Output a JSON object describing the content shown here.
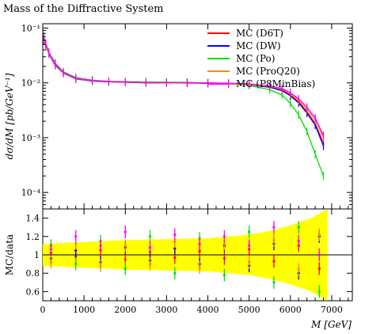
{
  "chart_data": [
    {
      "type": "line",
      "title": "Mass of the Diffractive System",
      "ylabel": "dσ/dM [pb/GeV⁻¹]",
      "xlabel": "",
      "xlim": [
        0,
        7500
      ],
      "ylim": [
        5e-05,
        0.12
      ],
      "yscale": "log",
      "ytick_labels": [
        "10⁻¹",
        "10⁻²",
        "10⁻³",
        "10⁻⁴"
      ],
      "ytick_values": [
        0.1,
        0.01,
        0.001,
        0.0001
      ],
      "legend": {
        "placement": "top-right"
      },
      "series": [
        {
          "name": "MC (D6T)",
          "color": "#ff0000",
          "x": [
            25,
            75,
            150,
            300,
            500,
            800,
            1200,
            1600,
            2000,
            2500,
            3000,
            3500,
            4000,
            4500,
            5000,
            5500,
            5800,
            6000,
            6200,
            6400,
            6600,
            6800
          ],
          "y": [
            0.065,
            0.05,
            0.035,
            0.022,
            0.015,
            0.012,
            0.011,
            0.0105,
            0.0103,
            0.0102,
            0.0101,
            0.0101,
            0.0099,
            0.0098,
            0.0095,
            0.0085,
            0.0075,
            0.006,
            0.0045,
            0.003,
            0.0018,
            0.0008
          ]
        },
        {
          "name": "MC (DW)",
          "color": "#0000ff",
          "x": [
            25,
            75,
            150,
            300,
            500,
            800,
            1200,
            1600,
            2000,
            2500,
            3000,
            3500,
            4000,
            4500,
            5000,
            5500,
            5800,
            6000,
            6200,
            6400,
            6600,
            6800
          ],
          "y": [
            0.06,
            0.048,
            0.034,
            0.021,
            0.015,
            0.0118,
            0.0108,
            0.0104,
            0.0102,
            0.01,
            0.01,
            0.0099,
            0.0098,
            0.0096,
            0.0093,
            0.0083,
            0.0072,
            0.0058,
            0.0043,
            0.0028,
            0.0017,
            0.0007
          ]
        },
        {
          "name": "MC (Po)",
          "color": "#00dd00",
          "x": [
            25,
            75,
            150,
            300,
            500,
            800,
            1200,
            1600,
            2000,
            2500,
            3000,
            3500,
            4000,
            4500,
            5000,
            5500,
            5800,
            6000,
            6200,
            6400,
            6600,
            6800
          ],
          "y": [
            0.07,
            0.052,
            0.036,
            0.023,
            0.016,
            0.0125,
            0.0112,
            0.0107,
            0.0105,
            0.0104,
            0.0103,
            0.0102,
            0.01,
            0.0097,
            0.009,
            0.0075,
            0.006,
            0.0042,
            0.0026,
            0.0013,
            0.0005,
            0.0002
          ]
        },
        {
          "name": "MC (ProQ20)",
          "color": "#ff8c00",
          "x": [
            25,
            75,
            150,
            300,
            500,
            800,
            1200,
            1600,
            2000,
            2500,
            3000,
            3500,
            4000,
            4500,
            5000,
            5500,
            5800,
            6000,
            6200,
            6400,
            6600,
            6800
          ],
          "y": [
            0.062,
            0.049,
            0.035,
            0.022,
            0.0152,
            0.012,
            0.011,
            0.0105,
            0.0103,
            0.0101,
            0.01,
            0.01,
            0.0099,
            0.0097,
            0.0094,
            0.0086,
            0.0077,
            0.0063,
            0.0048,
            0.0033,
            0.0021,
            0.001
          ]
        },
        {
          "name": "MC (P8MinBias)",
          "color": "#ff00ff",
          "x": [
            25,
            75,
            150,
            300,
            500,
            800,
            1200,
            1600,
            2000,
            2500,
            3000,
            3500,
            4000,
            4500,
            5000,
            5500,
            5800,
            6000,
            6200,
            6400,
            6600,
            6800
          ],
          "y": [
            0.068,
            0.051,
            0.036,
            0.023,
            0.0155,
            0.0122,
            0.0111,
            0.0106,
            0.0104,
            0.0102,
            0.0101,
            0.0101,
            0.01,
            0.0098,
            0.0096,
            0.0088,
            0.0079,
            0.0066,
            0.0051,
            0.0036,
            0.0023,
            0.0011
          ]
        }
      ]
    },
    {
      "type": "line",
      "title": "",
      "ylabel": "MC/data",
      "xlabel": "M [GeV]",
      "xlim": [
        0,
        7500
      ],
      "ylim": [
        0.5,
        1.5
      ],
      "xticks": [
        0,
        1000,
        2000,
        3000,
        4000,
        5000,
        6000,
        7000
      ],
      "yticks": [
        0.6,
        0.8,
        1,
        1.2,
        1.4
      ],
      "reference_line": 1,
      "uncertainty_band": {
        "color": "#ffff00",
        "x": [
          0,
          1000,
          2000,
          3000,
          4000,
          5000,
          5500,
          6000,
          6500,
          6900
        ],
        "lower": [
          0.88,
          0.86,
          0.84,
          0.83,
          0.82,
          0.78,
          0.74,
          0.68,
          0.6,
          0.5
        ],
        "upper": [
          1.12,
          1.14,
          1.16,
          1.17,
          1.18,
          1.22,
          1.26,
          1.32,
          1.4,
          1.5
        ]
      },
      "series": [
        {
          "name": "MC (D6T)",
          "color": "#ff0000",
          "x": [
            200,
            800,
            1400,
            2000,
            2600,
            3200,
            3800,
            4400,
            5000,
            5600,
            6200,
            6700
          ],
          "y": [
            1.02,
            0.98,
            1.05,
            0.95,
            1.03,
            0.97,
            1.04,
            0.96,
            1.06,
            0.93,
            1.1,
            0.85
          ]
        },
        {
          "name": "MC (DW)",
          "color": "#0000ff",
          "x": [
            200,
            800,
            1400,
            2000,
            2600,
            3200,
            3800,
            4400,
            5000,
            5600,
            6200,
            6700
          ],
          "y": [
            0.96,
            1.05,
            0.92,
            1.08,
            0.94,
            1.07,
            0.9,
            1.1,
            0.88,
            1.12,
            0.8,
            1.2
          ]
        },
        {
          "name": "MC (Po)",
          "color": "#00dd00",
          "x": [
            200,
            800,
            1400,
            2000,
            2600,
            3200,
            3800,
            4400,
            5000,
            5600,
            6200,
            6700
          ],
          "y": [
            1.1,
            0.9,
            1.15,
            0.85,
            1.2,
            0.8,
            1.18,
            0.78,
            1.25,
            0.7,
            1.3,
            0.6
          ]
        },
        {
          "name": "MC (ProQ20)",
          "color": "#ff8c00",
          "x": [
            200,
            800,
            1400,
            2000,
            2600,
            3200,
            3800,
            4400,
            5000,
            5600,
            6200,
            6700
          ],
          "y": [
            0.92,
            1.12,
            0.88,
            1.1,
            0.9,
            1.14,
            0.86,
            1.12,
            0.92,
            1.16,
            0.84,
            1.22
          ]
        },
        {
          "name": "MC (P8MinBias)",
          "color": "#ff00ff",
          "x": [
            200,
            800,
            1400,
            2000,
            2600,
            3200,
            3800,
            4400,
            5000,
            5600,
            6200,
            6700
          ],
          "y": [
            1.06,
            1.2,
            1.1,
            1.25,
            1.08,
            1.22,
            1.12,
            1.2,
            1.1,
            1.3,
            1.15,
            1.0
          ]
        }
      ]
    }
  ]
}
